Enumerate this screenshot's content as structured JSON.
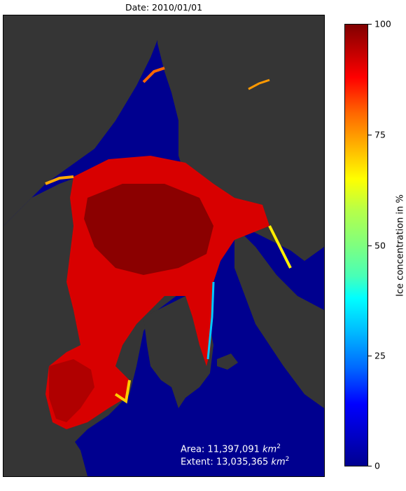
{
  "map": {
    "title": "Date: 2010/01/01",
    "area_label": "Area: 11,397,091 ",
    "extent_label": "Extent: 13,035,365 ",
    "unit_base": "km",
    "unit_exp": "2"
  },
  "colorbar": {
    "label": "Ice concentration in %",
    "ticks": [
      "100",
      "75",
      "50",
      "25",
      "0"
    ],
    "range": [
      0,
      100
    ]
  },
  "colors": {
    "ocean": "#00008f",
    "land": "#353535",
    "ice_core": "#8b0000",
    "ice_mid": "#d80000",
    "ice_edge": "#ff6600"
  }
}
